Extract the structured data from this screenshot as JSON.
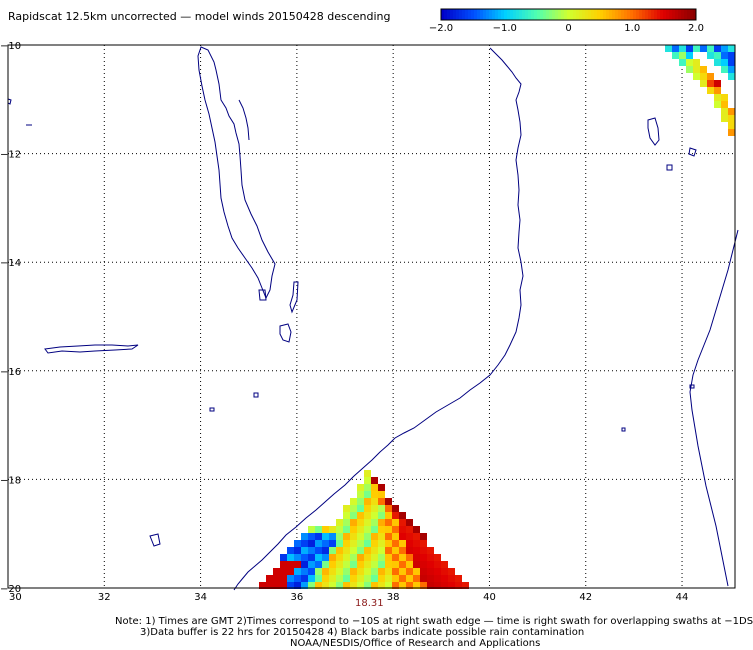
{
  "title": "Rapidscat 12.5km uncorrected — model winds 20150428 descending",
  "colorbar": {
    "ticks": [
      {
        "label": "−2.0",
        "value": -2.0
      },
      {
        "label": "−1.0",
        "value": -1.0
      },
      {
        "label": "0",
        "value": 0
      },
      {
        "label": "1.0",
        "value": 1.0
      },
      {
        "label": "2.0",
        "value": 2.0
      }
    ],
    "range": [
      -2.0,
      2.0
    ],
    "colors": [
      "#0000c8",
      "#0050ff",
      "#00d0ff",
      "#50ffb0",
      "#d0ff30",
      "#ffd000",
      "#ff7000",
      "#e00000",
      "#8b0000"
    ]
  },
  "map": {
    "lon_ticks": [
      {
        "label": "30",
        "value": 30
      },
      {
        "label": "32",
        "value": 32
      },
      {
        "label": "34",
        "value": 34
      },
      {
        "label": "36",
        "value": 36
      },
      {
        "label": "38",
        "value": 38
      },
      {
        "label": "40",
        "value": 40
      },
      {
        "label": "42",
        "value": 42
      },
      {
        "label": "44",
        "value": 44
      }
    ],
    "lat_ticks": [
      {
        "label": "−10",
        "value": -10
      },
      {
        "label": "−12",
        "value": -12
      },
      {
        "label": "−14",
        "value": -14
      },
      {
        "label": "−16",
        "value": -16
      },
      {
        "label": "−18",
        "value": -18
      },
      {
        "label": "−20",
        "value": -20
      }
    ],
    "lon_range": [
      30,
      45.1
    ],
    "lat_range": [
      -20,
      -10
    ],
    "coast_color": "#000080",
    "grid": "dotted"
  },
  "swath_time": "18.31",
  "notes": [
    "Note: 1) Times are GMT 2)Times correspond to −10S at right swath edge — time is right swath for overlapping swaths at −1DS",
    "3)Data buffer is 22 hrs for 20150428 4) Black barbs indicate possible rain contamination",
    "NOAA/NESDIS/Office of Research and Applications"
  ]
}
